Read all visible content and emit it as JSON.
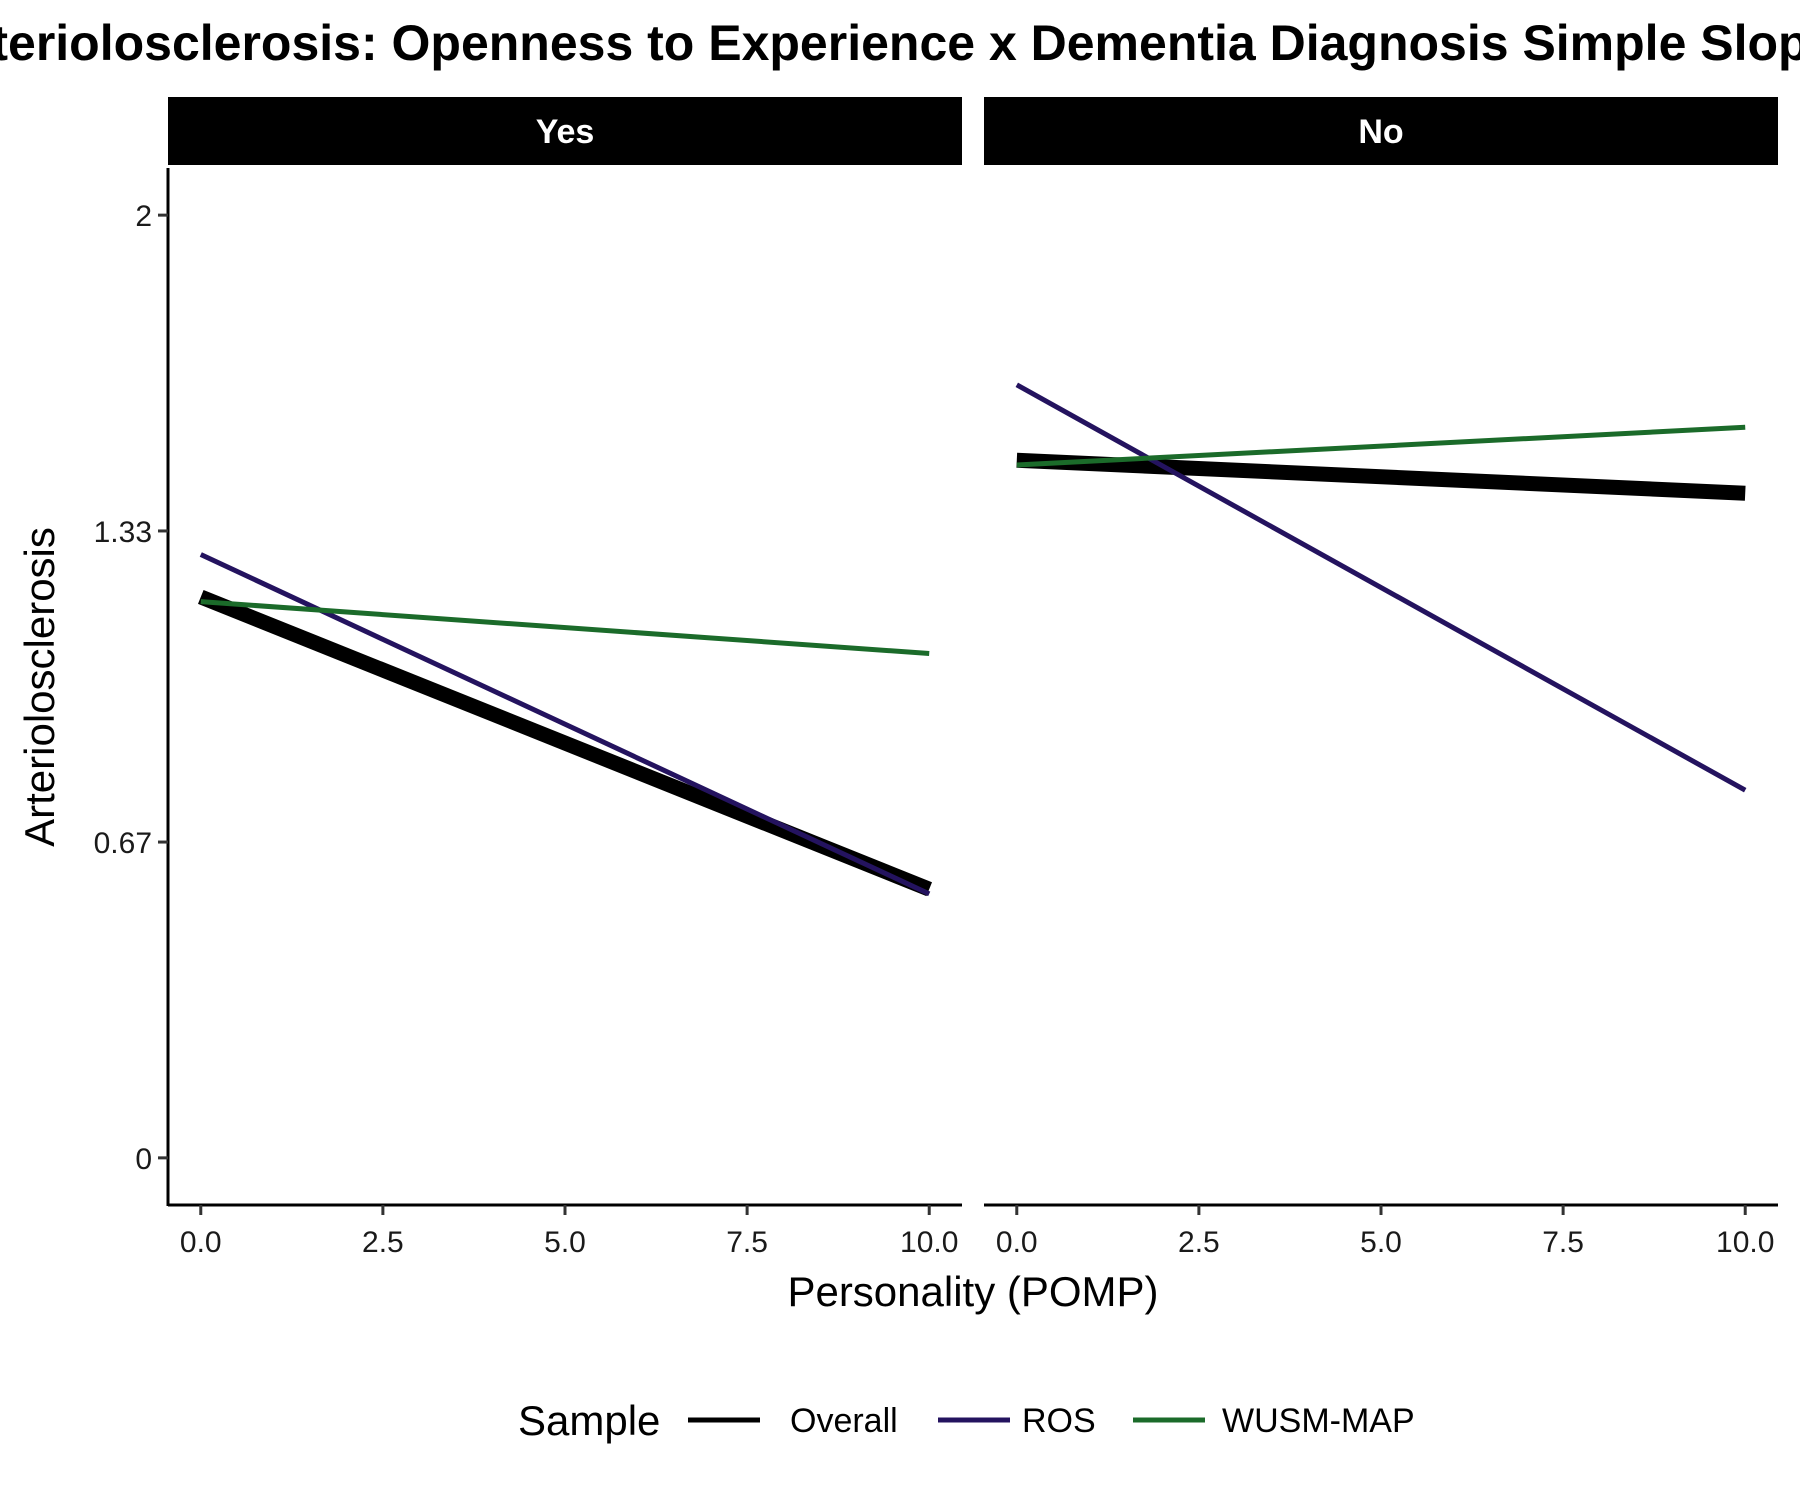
{
  "chart_data": {
    "type": "line",
    "title": "Arteriolosclerosis: Openness to Experience x Dementia Diagnosis Simple Slopes",
    "xlabel": "Personality (POMP)",
    "ylabel": "Arteriolosclerosis",
    "xlim": [
      -0.45,
      10.45
    ],
    "ylim": [
      -0.1,
      2.1
    ],
    "x_ticks": [
      0,
      2.5,
      5,
      7.5,
      10
    ],
    "x_tick_labels": [
      "0.0",
      "2.5",
      "5.0",
      "7.5",
      "10.0"
    ],
    "y_ticks": [
      0,
      0.67,
      1.33,
      2
    ],
    "y_tick_labels": [
      "0",
      "0.67",
      "1.33",
      "2"
    ],
    "legend": {
      "title": "Sample",
      "position": "bottom"
    },
    "facets": [
      {
        "label": "Yes",
        "series": [
          {
            "name": "Overall",
            "x": [
              0,
              10
            ],
            "y": [
              1.19,
              0.57
            ]
          },
          {
            "name": "ROS",
            "x": [
              0,
              10
            ],
            "y": [
              1.28,
              0.56
            ]
          },
          {
            "name": "WUSM-MAP",
            "x": [
              0,
              10
            ],
            "y": [
              1.18,
              1.07
            ]
          }
        ]
      },
      {
        "label": "No",
        "series": [
          {
            "name": "Overall",
            "x": [
              0,
              10
            ],
            "y": [
              1.48,
              1.41
            ]
          },
          {
            "name": "ROS",
            "x": [
              0,
              10
            ],
            "y": [
              1.64,
              0.78
            ]
          },
          {
            "name": "WUSM-MAP",
            "x": [
              0,
              10
            ],
            "y": [
              1.47,
              1.55
            ]
          }
        ]
      }
    ],
    "series_styles": [
      {
        "name": "Overall",
        "color": "#000000"
      },
      {
        "name": "ROS",
        "color": "#24135f"
      },
      {
        "name": "WUSM-MAP",
        "color": "#1b6b2a"
      }
    ]
  }
}
